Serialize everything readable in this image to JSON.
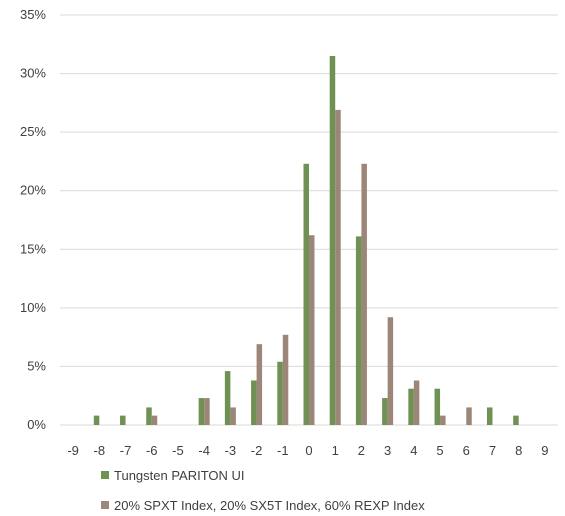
{
  "chart_data": {
    "type": "bar",
    "categories": [
      "-9",
      "-8",
      "-7",
      "-6",
      "-5",
      "-4",
      "-3",
      "-2",
      "-1",
      "0",
      "1",
      "2",
      "3",
      "4",
      "5",
      "6",
      "7",
      "8",
      "9"
    ],
    "series": [
      {
        "name": "Tungsten PARITON UI",
        "color": "#6f9154",
        "values": [
          0,
          0.8,
          0.8,
          1.5,
          0,
          2.3,
          4.6,
          3.8,
          5.4,
          22.3,
          31.5,
          16.1,
          2.3,
          3.1,
          3.1,
          0,
          1.5,
          0.8,
          0
        ]
      },
      {
        "name": "20% SPXT Index, 20% SX5T Index, 60% REXP Index",
        "color": "#9b8678",
        "values": [
          0,
          0,
          0,
          0.8,
          0,
          2.3,
          1.5,
          6.9,
          7.7,
          16.2,
          26.9,
          22.3,
          9.2,
          3.8,
          0.8,
          1.5,
          0,
          0,
          0
        ]
      }
    ],
    "yticks": [
      "0%",
      "5%",
      "10%",
      "15%",
      "20%",
      "25%",
      "30%",
      "35%"
    ],
    "ylim": [
      0,
      35
    ],
    "grid": true,
    "legend_position": "bottom"
  }
}
